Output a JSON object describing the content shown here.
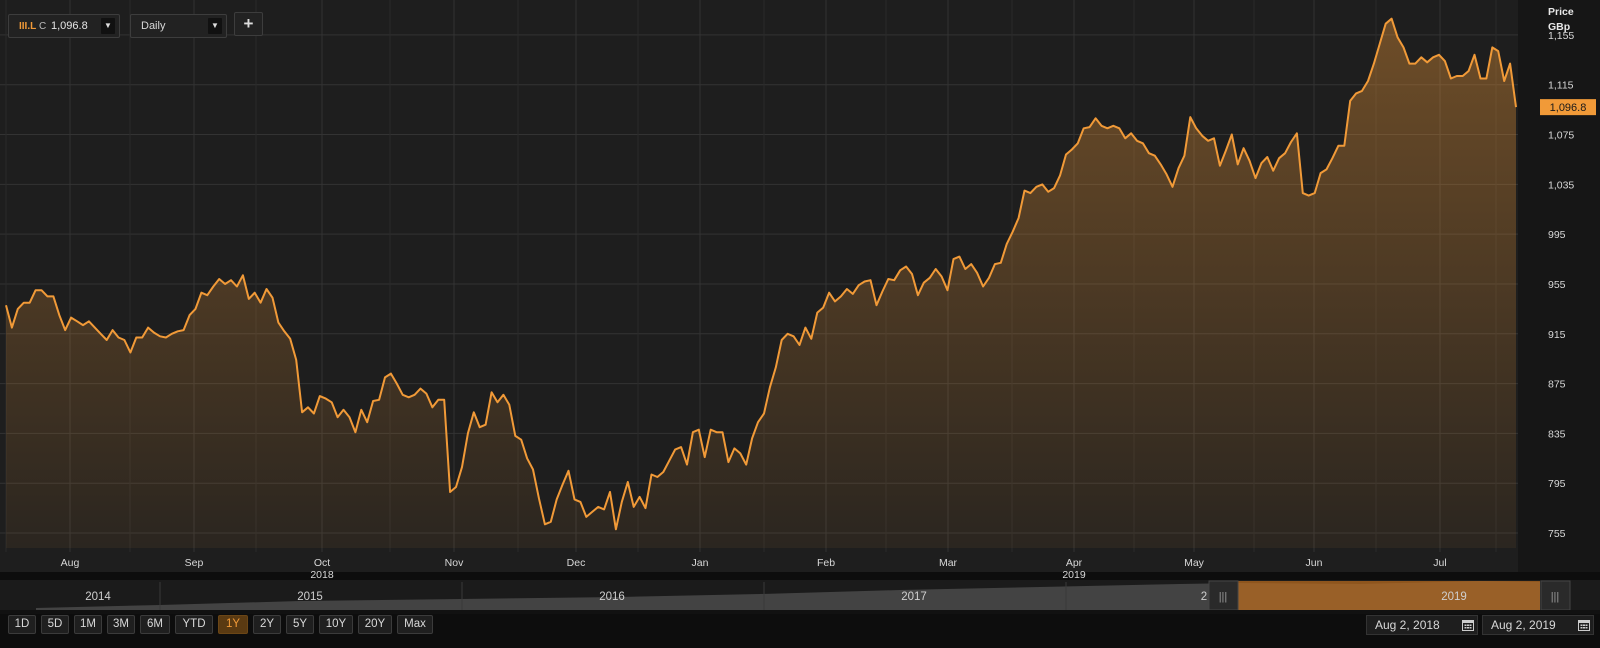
{
  "toolbar": {
    "symbol": "III.L",
    "close_prefix": "C",
    "last_value": "1,096.8",
    "interval": "Daily",
    "add_label": "+"
  },
  "axis": {
    "unit_line1": "Price",
    "unit_line2": "GBp",
    "last_price_label": "1,096.8"
  },
  "navigator": {
    "years": [
      "2014",
      "2015",
      "2016",
      "2017",
      "2",
      "2019"
    ]
  },
  "range_buttons": [
    "1D",
    "5D",
    "1M",
    "3M",
    "6M",
    "YTD",
    "1Y",
    "2Y",
    "5Y",
    "10Y",
    "20Y",
    "Max"
  ],
  "active_range": "1Y",
  "date_range": {
    "from": "Aug 2, 2018",
    "to": "Aug 2, 2019"
  },
  "colors": {
    "line": "#f19a38",
    "background": "#1e1e1e",
    "grid": "#333333",
    "accent_box": "#f19a38"
  },
  "chart_data": {
    "type": "area",
    "series": [
      {
        "values": [
          938,
          920,
          935,
          940,
          940,
          950,
          950,
          945,
          945,
          930,
          918,
          928,
          925,
          922,
          925,
          920,
          915,
          910,
          918,
          912,
          910,
          900,
          912,
          912,
          920,
          916,
          913,
          912,
          915,
          917,
          918,
          930,
          935,
          948,
          946,
          953,
          959,
          955,
          958,
          953,
          962,
          943,
          948,
          940,
          951,
          944,
          924,
          917,
          911,
          894,
          852,
          856,
          851,
          865,
          863,
          860,
          848,
          854,
          848,
          836,
          854,
          844,
          861,
          862,
          880,
          883,
          875,
          866,
          864,
          866,
          871,
          867,
          856,
          862,
          862,
          788,
          792,
          808,
          835,
          852,
          840,
          842,
          868,
          860,
          866,
          858,
          833,
          830,
          815,
          806,
          783,
          762,
          764,
          782,
          794,
          805,
          782,
          780,
          768,
          772,
          776,
          774,
          788,
          758,
          780,
          796,
          776,
          784,
          775,
          802,
          800,
          804,
          813,
          822,
          824,
          810,
          836,
          838,
          816,
          838,
          836,
          836,
          812,
          823,
          819,
          810,
          831,
          844,
          851,
          872,
          888,
          910,
          915,
          913,
          906,
          920,
          911,
          932,
          936,
          948,
          941,
          945,
          951,
          947,
          954,
          957,
          958,
          938,
          949,
          959,
          958,
          966,
          969,
          963,
          946,
          956,
          960,
          967,
          961,
          950,
          975,
          977,
          967,
          971,
          964,
          953,
          960,
          971,
          972,
          987,
          997,
          1008,
          1030,
          1028,
          1033,
          1035,
          1029,
          1032,
          1042,
          1059,
          1063,
          1068,
          1080,
          1081,
          1088,
          1082,
          1080,
          1082,
          1080,
          1072,
          1076,
          1070,
          1068,
          1060,
          1058,
          1051,
          1043,
          1033,
          1048,
          1058,
          1089,
          1080,
          1074,
          1070,
          1072,
          1050,
          1062,
          1075,
          1051,
          1064,
          1054,
          1040,
          1052,
          1057,
          1046,
          1056,
          1060,
          1069,
          1076,
          1028,
          1026,
          1028,
          1044,
          1047,
          1056,
          1066,
          1066,
          1102,
          1108,
          1110,
          1118,
          1132,
          1148,
          1164,
          1168,
          1153,
          1145,
          1132,
          1132,
          1137,
          1133,
          1137,
          1139,
          1134,
          1120,
          1122,
          1122,
          1126,
          1139,
          1120,
          1120,
          1145,
          1142,
          1118,
          1132,
          1097
        ]
      }
    ],
    "x_labels": [
      "Aug",
      "Sep",
      "Oct",
      "Nov",
      "Dec",
      "Jan",
      "Feb",
      "Mar",
      "Apr",
      "May",
      "Jun",
      "Jul"
    ],
    "x_year_labels": [
      {
        "under": "Oct",
        "text": "2018"
      },
      {
        "under": "Apr",
        "text": "2019"
      }
    ],
    "y_ticks": [
      "1,155",
      "1,115",
      "1,075",
      "1,035",
      "995",
      "955",
      "915",
      "875",
      "835",
      "795",
      "755"
    ],
    "ylim": [
      743,
      1175
    ],
    "grid": true,
    "legend": "none"
  }
}
